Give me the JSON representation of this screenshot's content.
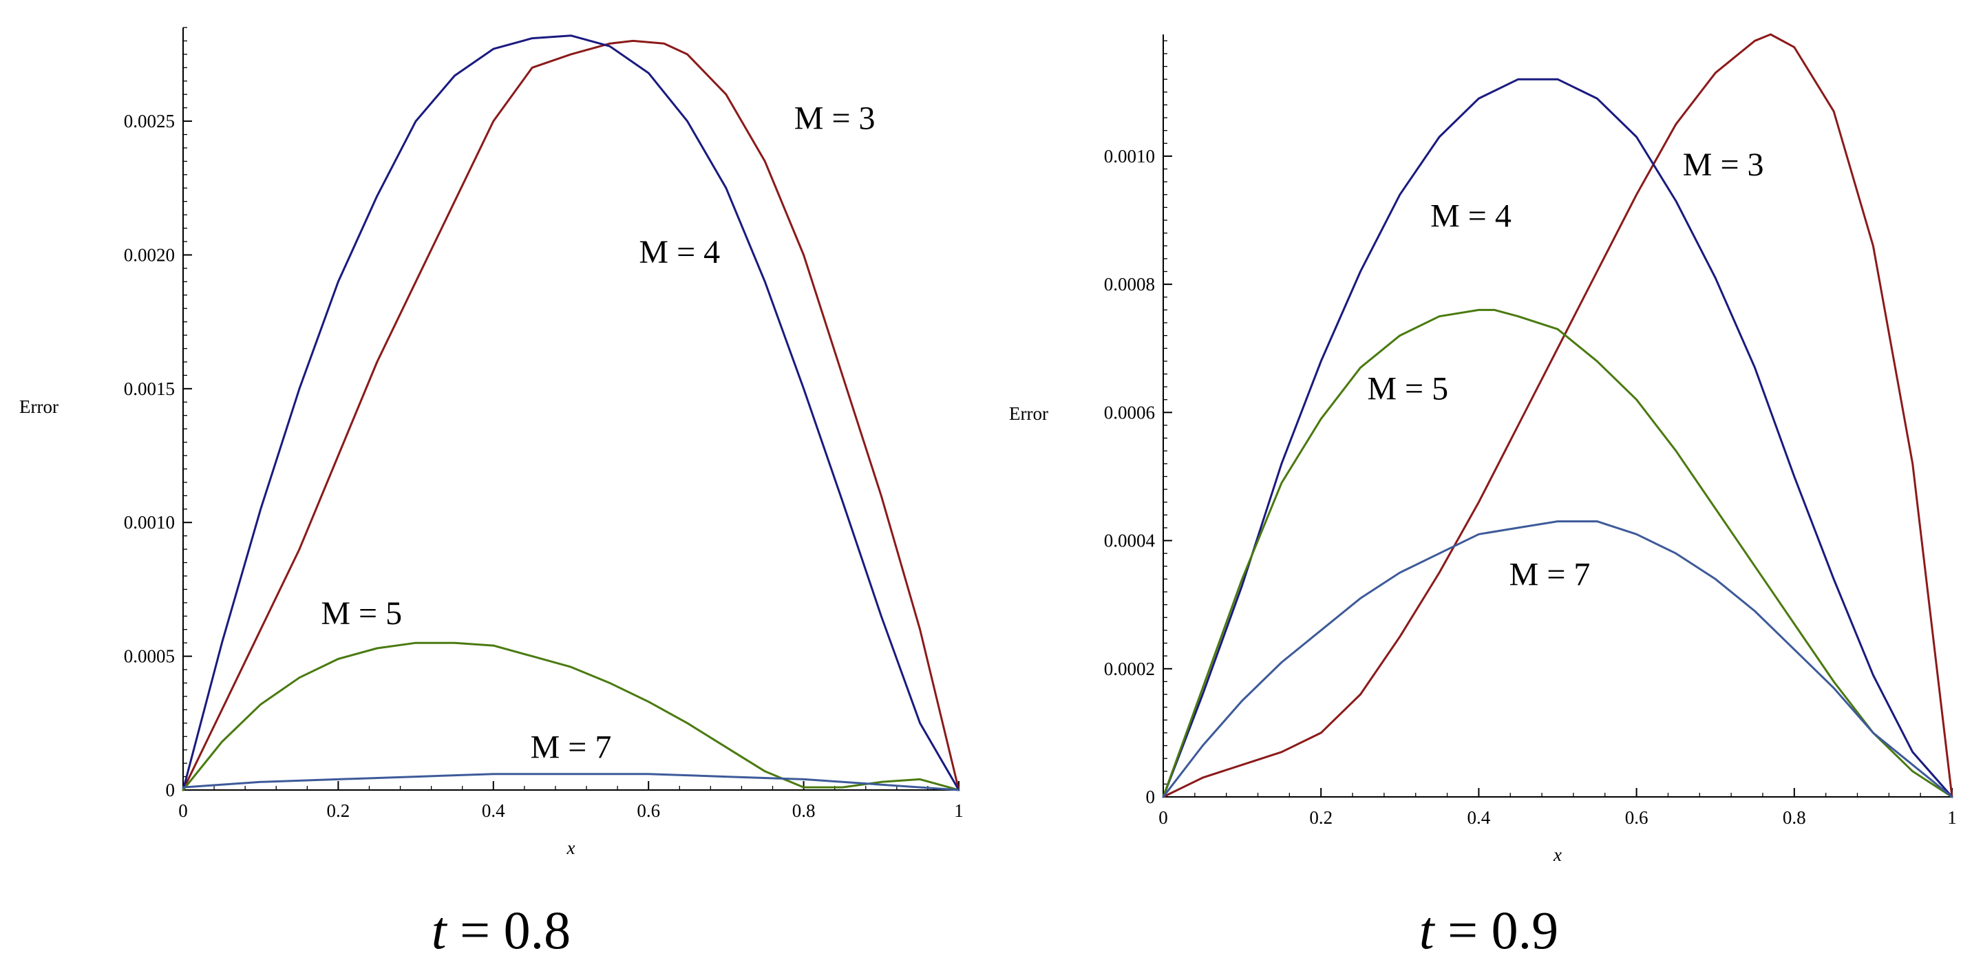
{
  "chart_data": [
    {
      "type": "line",
      "caption_var": "t",
      "caption_rest": " = 0.8",
      "xlabel": "x",
      "ylabel": "Error",
      "xlim": [
        0,
        1
      ],
      "ylim": [
        0,
        0.00285
      ],
      "xticks": [
        0,
        0.2,
        0.4,
        0.6,
        0.8,
        1
      ],
      "xtick_labels": [
        "0",
        "0.2",
        "0.4",
        "0.6",
        "0.8",
        "1"
      ],
      "yticks": [
        0,
        0.0005,
        0.001,
        0.0015,
        0.002,
        0.0025
      ],
      "ytick_labels": [
        "0",
        "0.0005",
        "0.0010",
        "0.0015",
        "0.0020",
        "0.0025"
      ],
      "series": [
        {
          "name": "M = 3",
          "color": "#8b1a1a",
          "x": [
            0,
            0.05,
            0.1,
            0.15,
            0.2,
            0.25,
            0.3,
            0.35,
            0.4,
            0.45,
            0.5,
            0.55,
            0.58,
            0.62,
            0.65,
            0.7,
            0.75,
            0.8,
            0.85,
            0.9,
            0.95,
            1
          ],
          "y": [
            0,
            0.0003,
            0.0006,
            0.0009,
            0.00125,
            0.0016,
            0.0019,
            0.0022,
            0.0025,
            0.0027,
            0.00275,
            0.00279,
            0.0028,
            0.00279,
            0.00275,
            0.0026,
            0.00235,
            0.002,
            0.00155,
            0.0011,
            0.0006,
            0
          ]
        },
        {
          "name": "M = 4",
          "color": "#1a1a80",
          "x": [
            0,
            0.05,
            0.1,
            0.15,
            0.2,
            0.25,
            0.3,
            0.35,
            0.4,
            0.45,
            0.5,
            0.55,
            0.6,
            0.65,
            0.7,
            0.75,
            0.8,
            0.85,
            0.9,
            0.95,
            1
          ],
          "y": [
            0,
            0.00055,
            0.00105,
            0.0015,
            0.0019,
            0.00222,
            0.0025,
            0.00267,
            0.00277,
            0.00281,
            0.00282,
            0.00278,
            0.00268,
            0.0025,
            0.00225,
            0.0019,
            0.0015,
            0.00108,
            0.00065,
            0.00025,
            0
          ]
        },
        {
          "name": "M = 5",
          "color": "#4a7a10",
          "x": [
            0,
            0.05,
            0.1,
            0.15,
            0.2,
            0.25,
            0.3,
            0.35,
            0.4,
            0.45,
            0.5,
            0.55,
            0.6,
            0.65,
            0.7,
            0.75,
            0.8,
            0.85,
            0.9,
            0.95,
            1
          ],
          "y": [
            0,
            0.00018,
            0.00032,
            0.00042,
            0.00049,
            0.00053,
            0.00055,
            0.00055,
            0.00054,
            0.0005,
            0.00046,
            0.0004,
            0.00033,
            0.00025,
            0.00016,
            7e-05,
            1e-05,
            1e-05,
            3e-05,
            4e-05,
            0
          ]
        },
        {
          "name": "M = 7",
          "color": "#3d5a99",
          "x": [
            0,
            0.1,
            0.2,
            0.3,
            0.4,
            0.5,
            0.6,
            0.7,
            0.8,
            0.9,
            1
          ],
          "y": [
            1e-05,
            3e-05,
            4e-05,
            5e-05,
            6e-05,
            6e-05,
            6e-05,
            5e-05,
            4e-05,
            2e-05,
            0
          ]
        }
      ],
      "annotations": [
        {
          "text": "M = 3",
          "x": 0.84,
          "y": 0.00247
        },
        {
          "text": "M = 4",
          "x": 0.64,
          "y": 0.00197
        },
        {
          "text": "M = 5",
          "x": 0.23,
          "y": 0.00062
        },
        {
          "text": "M = 7",
          "x": 0.5,
          "y": 0.00012
        }
      ]
    },
    {
      "type": "line",
      "caption_var": "t",
      "caption_rest": " = 0.9",
      "xlabel": "x",
      "ylabel": "Error",
      "xlim": [
        0,
        1
      ],
      "ylim": [
        0,
        0.00119
      ],
      "xticks": [
        0,
        0.2,
        0.4,
        0.6,
        0.8,
        1
      ],
      "xtick_labels": [
        "0",
        "0.2",
        "0.4",
        "0.6",
        "0.8",
        "1"
      ],
      "yticks": [
        0,
        0.0002,
        0.0004,
        0.0006,
        0.0008,
        0.001
      ],
      "ytick_labels": [
        "0",
        "0.0002",
        "0.0004",
        "0.0006",
        "0.0008",
        "0.0010"
      ],
      "series": [
        {
          "name": "M = 3",
          "color": "#8b1a1a",
          "x": [
            0,
            0.05,
            0.1,
            0.15,
            0.2,
            0.25,
            0.3,
            0.35,
            0.4,
            0.45,
            0.5,
            0.55,
            0.6,
            0.65,
            0.7,
            0.75,
            0.77,
            0.8,
            0.85,
            0.9,
            0.95,
            1
          ],
          "y": [
            0,
            3e-05,
            5e-05,
            7e-05,
            0.0001,
            0.00016,
            0.00025,
            0.00035,
            0.00046,
            0.00058,
            0.0007,
            0.00082,
            0.00094,
            0.00105,
            0.00113,
            0.00118,
            0.00119,
            0.00117,
            0.00107,
            0.00086,
            0.00052,
            0
          ]
        },
        {
          "name": "M = 4",
          "color": "#1a1a80",
          "x": [
            0,
            0.05,
            0.1,
            0.15,
            0.2,
            0.25,
            0.3,
            0.35,
            0.4,
            0.45,
            0.5,
            0.55,
            0.6,
            0.65,
            0.7,
            0.75,
            0.8,
            0.85,
            0.9,
            0.95,
            1
          ],
          "y": [
            0,
            0.00016,
            0.00033,
            0.00052,
            0.00068,
            0.00082,
            0.00094,
            0.00103,
            0.00109,
            0.00112,
            0.00112,
            0.00109,
            0.00103,
            0.00093,
            0.00081,
            0.00067,
            0.0005,
            0.00034,
            0.00019,
            7e-05,
            0
          ]
        },
        {
          "name": "M = 5",
          "color": "#4a7a10",
          "x": [
            0,
            0.05,
            0.1,
            0.15,
            0.2,
            0.25,
            0.3,
            0.35,
            0.4,
            0.42,
            0.45,
            0.5,
            0.55,
            0.6,
            0.65,
            0.7,
            0.75,
            0.8,
            0.85,
            0.9,
            0.95,
            1
          ],
          "y": [
            0,
            0.00017,
            0.00034,
            0.00049,
            0.00059,
            0.00067,
            0.00072,
            0.00075,
            0.00076,
            0.00076,
            0.00075,
            0.00073,
            0.00068,
            0.00062,
            0.00054,
            0.00045,
            0.00036,
            0.00027,
            0.00018,
            0.0001,
            4e-05,
            0
          ]
        },
        {
          "name": "M = 7",
          "color": "#3d5a99",
          "x": [
            0,
            0.05,
            0.1,
            0.15,
            0.2,
            0.25,
            0.3,
            0.35,
            0.4,
            0.45,
            0.5,
            0.55,
            0.6,
            0.65,
            0.7,
            0.75,
            0.8,
            0.85,
            0.9,
            0.95,
            1
          ],
          "y": [
            0,
            8e-05,
            0.00015,
            0.00021,
            0.00026,
            0.00031,
            0.00035,
            0.00038,
            0.00041,
            0.00042,
            0.00043,
            0.00043,
            0.00041,
            0.00038,
            0.00034,
            0.00029,
            0.00023,
            0.00017,
            0.0001,
            5e-05,
            0
          ]
        }
      ],
      "annotations": [
        {
          "text": "M = 3",
          "x": 0.71,
          "y": 0.00097
        },
        {
          "text": "M = 4",
          "x": 0.39,
          "y": 0.00089
        },
        {
          "text": "M = 5",
          "x": 0.31,
          "y": 0.00062
        },
        {
          "text": "M = 7",
          "x": 0.49,
          "y": 0.00033
        }
      ]
    }
  ]
}
